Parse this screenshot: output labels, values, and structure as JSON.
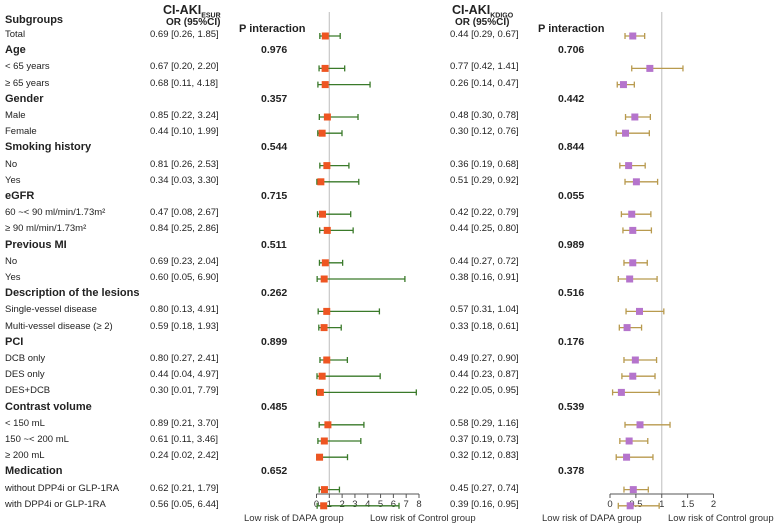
{
  "chart_data": {
    "type": "forest",
    "column_header": "Subgroups",
    "footnotes": {
      "left": "Low risk of DAPA group",
      "right": "Low risk of Control group"
    },
    "panels": [
      {
        "title_main": "CI-AKI",
        "title_sub": "ESUR",
        "or_header": "OR (95%CI)",
        "p_header": "P interaction",
        "xlim": [
          0,
          8
        ],
        "ticks": [
          "0",
          "1",
          "2",
          "3",
          "4",
          "5",
          "6",
          "7",
          "8"
        ],
        "reference": 1,
        "marker_color": "#ee5522",
        "ci_color": "#3a7a2a"
      },
      {
        "title_main": "CI-AKI",
        "title_sub": "KDIGO",
        "or_header": "OR (95%CI)",
        "p_header": "P interaction",
        "xlim": [
          0,
          2
        ],
        "ticks": [
          "0",
          "0.5",
          "1",
          "1.5",
          "2"
        ],
        "reference": 1,
        "marker_color": "#b574cc",
        "ci_color": "#b89a4e"
      }
    ],
    "rows": [
      {
        "label": "Total",
        "header": false,
        "esur": {
          "text": "0.69 [0.26, 1.85]",
          "or": 0.69,
          "lo": 0.26,
          "hi": 1.85
        },
        "kdigo": {
          "text": "0.44 [0.29, 0.67]",
          "or": 0.44,
          "lo": 0.29,
          "hi": 0.67
        }
      },
      {
        "label": "Age",
        "header": true,
        "p_esur": "0.976",
        "p_kdigo": "0.706"
      },
      {
        "label": "< 65 years",
        "header": false,
        "esur": {
          "text": "0.67 [0.20, 2.20]",
          "or": 0.67,
          "lo": 0.2,
          "hi": 2.2
        },
        "kdigo": {
          "text": "0.77 [0.42, 1.41]",
          "or": 0.77,
          "lo": 0.42,
          "hi": 1.41
        }
      },
      {
        "label": "≥ 65 years",
        "header": false,
        "esur": {
          "text": "0.68 [0.11, 4.18]",
          "or": 0.68,
          "lo": 0.11,
          "hi": 4.18
        },
        "kdigo": {
          "text": "0.26 [0.14, 0.47]",
          "or": 0.26,
          "lo": 0.14,
          "hi": 0.47
        }
      },
      {
        "label": "Gender",
        "header": true,
        "p_esur": "0.357",
        "p_kdigo": "0.442"
      },
      {
        "label": "Male",
        "header": false,
        "esur": {
          "text": "0.85 [0.22, 3.24]",
          "or": 0.85,
          "lo": 0.22,
          "hi": 3.24
        },
        "kdigo": {
          "text": "0.48 [0.30, 0.78]",
          "or": 0.48,
          "lo": 0.3,
          "hi": 0.78
        }
      },
      {
        "label": "Female",
        "header": false,
        "esur": {
          "text": "0.44 [0.10, 1.99]",
          "or": 0.44,
          "lo": 0.1,
          "hi": 1.99
        },
        "kdigo": {
          "text": "0.30 [0.12, 0.76]",
          "or": 0.3,
          "lo": 0.12,
          "hi": 0.76
        }
      },
      {
        "label": "Smoking history",
        "header": true,
        "p_esur": "0.544",
        "p_kdigo": "0.844"
      },
      {
        "label": "No",
        "header": false,
        "esur": {
          "text": "0.81 [0.26, 2.53]",
          "or": 0.81,
          "lo": 0.26,
          "hi": 2.53
        },
        "kdigo": {
          "text": "0.36 [0.19, 0.68]",
          "or": 0.36,
          "lo": 0.19,
          "hi": 0.68
        }
      },
      {
        "label": "Yes",
        "header": false,
        "esur": {
          "text": "0.34 [0.03, 3.30]",
          "or": 0.34,
          "lo": 0.03,
          "hi": 3.3
        },
        "kdigo": {
          "text": "0.51 [0.29, 0.92]",
          "or": 0.51,
          "lo": 0.29,
          "hi": 0.92
        }
      },
      {
        "label": "eGFR",
        "header": true,
        "p_esur": "0.715",
        "p_kdigo": "0.055"
      },
      {
        "label": "60 ~< 90 ml/min/1.73m²",
        "header": false,
        "esur": {
          "text": "0.47 [0.08, 2.67]",
          "or": 0.47,
          "lo": 0.08,
          "hi": 2.67
        },
        "kdigo": {
          "text": "0.42 [0.22, 0.79]",
          "or": 0.42,
          "lo": 0.22,
          "hi": 0.79
        }
      },
      {
        "label": "≥ 90 ml/min/1.73m²",
        "header": false,
        "esur": {
          "text": "0.84 [0.25, 2.86]",
          "or": 0.84,
          "lo": 0.25,
          "hi": 2.86
        },
        "kdigo": {
          "text": "0.44 [0.25, 0.80]",
          "or": 0.44,
          "lo": 0.25,
          "hi": 0.8
        }
      },
      {
        "label": "Previous MI",
        "header": true,
        "p_esur": "0.511",
        "p_kdigo": "0.989"
      },
      {
        "label": "No",
        "header": false,
        "esur": {
          "text": "0.69 [0.23, 2.04]",
          "or": 0.69,
          "lo": 0.23,
          "hi": 2.04
        },
        "kdigo": {
          "text": "0.44 [0.27, 0.72]",
          "or": 0.44,
          "lo": 0.27,
          "hi": 0.72
        }
      },
      {
        "label": "Yes",
        "header": false,
        "esur": {
          "text": "0.60 [0.05, 6.90]",
          "or": 0.6,
          "lo": 0.05,
          "hi": 6.9
        },
        "kdigo": {
          "text": "0.38 [0.16, 0.91]",
          "or": 0.38,
          "lo": 0.16,
          "hi": 0.91
        }
      },
      {
        "label": "Description of the lesions",
        "header": true,
        "p_esur": "0.262",
        "p_kdigo": "0.516"
      },
      {
        "label": "Single-vessel disease",
        "header": false,
        "esur": {
          "text": "0.80 [0.13, 4.91]",
          "or": 0.8,
          "lo": 0.13,
          "hi": 4.91
        },
        "kdigo": {
          "text": "0.57 [0.31, 1.04]",
          "or": 0.57,
          "lo": 0.31,
          "hi": 1.04
        }
      },
      {
        "label": "Multi-vessel disease (≥ 2)",
        "header": false,
        "esur": {
          "text": "0.59 [0.18, 1.93]",
          "or": 0.59,
          "lo": 0.18,
          "hi": 1.93
        },
        "kdigo": {
          "text": "0.33 [0.18, 0.61]",
          "or": 0.33,
          "lo": 0.18,
          "hi": 0.61
        }
      },
      {
        "label": "PCI",
        "header": true,
        "p_esur": "0.899",
        "p_kdigo": "0.176"
      },
      {
        "label": "DCB only",
        "header": false,
        "esur": {
          "text": "0.80 [0.27, 2.41]",
          "or": 0.8,
          "lo": 0.27,
          "hi": 2.41
        },
        "kdigo": {
          "text": "0.49 [0.27, 0.90]",
          "or": 0.49,
          "lo": 0.27,
          "hi": 0.9
        }
      },
      {
        "label": "DES only",
        "header": false,
        "esur": {
          "text": "0.44 [0.04, 4.97]",
          "or": 0.44,
          "lo": 0.04,
          "hi": 4.97
        },
        "kdigo": {
          "text": "0.44 [0.23, 0.87]",
          "or": 0.44,
          "lo": 0.23,
          "hi": 0.87
        }
      },
      {
        "label": "DES+DCB",
        "header": false,
        "esur": {
          "text": "0.30 [0.01, 7.79]",
          "or": 0.3,
          "lo": 0.01,
          "hi": 7.79
        },
        "kdigo": {
          "text": "0.22 [0.05, 0.95]",
          "or": 0.22,
          "lo": 0.05,
          "hi": 0.95
        }
      },
      {
        "label": "Contrast volume",
        "header": true,
        "p_esur": "0.485",
        "p_kdigo": "0.539"
      },
      {
        "label": "< 150 mL",
        "header": false,
        "esur": {
          "text": "0.89 [0.21, 3.70]",
          "or": 0.89,
          "lo": 0.21,
          "hi": 3.7
        },
        "kdigo": {
          "text": "0.58 [0.29, 1.16]",
          "or": 0.58,
          "lo": 0.29,
          "hi": 1.16
        }
      },
      {
        "label": "150 ~< 200 mL",
        "header": false,
        "esur": {
          "text": "0.61 [0.11, 3.46]",
          "or": 0.61,
          "lo": 0.11,
          "hi": 3.46
        },
        "kdigo": {
          "text": "0.37 [0.19, 0.73]",
          "or": 0.37,
          "lo": 0.19,
          "hi": 0.73
        }
      },
      {
        "label": "≥ 200 mL",
        "header": false,
        "esur": {
          "text": "0.24 [0.02, 2.42]",
          "or": 0.24,
          "lo": 0.02,
          "hi": 2.42
        },
        "kdigo": {
          "text": "0.32 [0.12, 0.83]",
          "or": 0.32,
          "lo": 0.12,
          "hi": 0.83
        }
      },
      {
        "label": "Medication",
        "header": true,
        "p_esur": "0.652",
        "p_kdigo": "0.378"
      },
      {
        "label": "without DPP4i or GLP-1RA",
        "header": false,
        "esur": {
          "text": "0.62 [0.21, 1.79]",
          "or": 0.62,
          "lo": 0.21,
          "hi": 1.79
        },
        "kdigo": {
          "text": "0.45 [0.27, 0.74]",
          "or": 0.45,
          "lo": 0.27,
          "hi": 0.74
        }
      },
      {
        "label": "with DPP4i or GLP-1RA",
        "header": false,
        "esur": {
          "text": "0.56 [0.05, 6.44]",
          "or": 0.56,
          "lo": 0.05,
          "hi": 6.44
        },
        "kdigo": {
          "text": "0.39 [0.16, 0.95]",
          "or": 0.39,
          "lo": 0.16,
          "hi": 0.95
        }
      }
    ]
  }
}
